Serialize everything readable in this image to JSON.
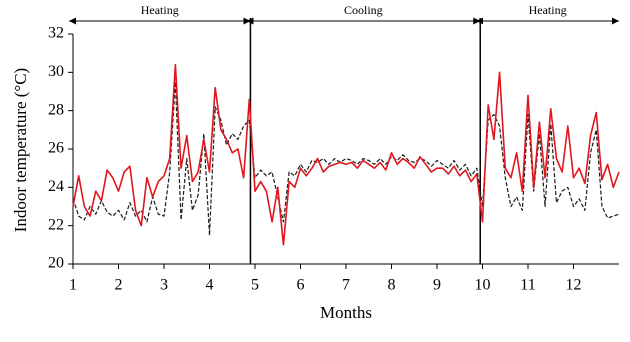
{
  "chart_data": {
    "type": "line",
    "xlabel": "Months",
    "ylabel": "Indoor temperature (°C)",
    "xlim": [
      1,
      13
    ],
    "ylim": [
      20,
      32
    ],
    "xticks": [
      1,
      2,
      3,
      4,
      5,
      6,
      7,
      8,
      9,
      10,
      11,
      12
    ],
    "yticks": [
      20,
      22,
      24,
      26,
      28,
      30,
      32
    ],
    "grid": false,
    "vlines": [
      4.9,
      9.95
    ],
    "annotations": [
      {
        "text": "Heating",
        "x": [
          1,
          4.9
        ]
      },
      {
        "text": "Cooling",
        "x": [
          4.9,
          9.95
        ]
      },
      {
        "text": "Heating",
        "x": [
          9.95,
          13
        ]
      }
    ],
    "x": [
      1,
      1.125,
      1.25,
      1.375,
      1.5,
      1.625,
      1.75,
      1.875,
      2,
      2.125,
      2.25,
      2.375,
      2.5,
      2.625,
      2.75,
      2.875,
      3,
      3.125,
      3.25,
      3.375,
      3.5,
      3.625,
      3.75,
      3.875,
      4,
      4.125,
      4.25,
      4.375,
      4.5,
      4.625,
      4.75,
      4.875,
      5,
      5.125,
      5.25,
      5.375,
      5.5,
      5.625,
      5.75,
      5.875,
      6,
      6.125,
      6.25,
      6.375,
      6.5,
      6.625,
      6.75,
      6.875,
      7,
      7.125,
      7.25,
      7.375,
      7.5,
      7.625,
      7.75,
      7.875,
      8,
      8.125,
      8.25,
      8.375,
      8.5,
      8.625,
      8.75,
      8.875,
      9,
      9.125,
      9.25,
      9.375,
      9.5,
      9.625,
      9.75,
      9.875,
      10,
      10.125,
      10.25,
      10.375,
      10.5,
      10.625,
      10.75,
      10.875,
      11,
      11.125,
      11.25,
      11.375,
      11.5,
      11.625,
      11.75,
      11.875,
      12,
      12.125,
      12.25,
      12.375,
      12.5,
      12.625,
      12.75,
      12.875,
      13
    ],
    "series": [
      {
        "color": "#e0161e",
        "dash": false,
        "values": [
          23.0,
          24.6,
          23.0,
          22.5,
          23.8,
          23.3,
          24.9,
          24.5,
          23.8,
          24.8,
          25.1,
          22.8,
          22.0,
          24.5,
          23.5,
          24.3,
          24.6,
          25.5,
          30.4,
          25.0,
          26.7,
          24.3,
          24.8,
          26.5,
          24.8,
          29.2,
          27.0,
          26.5,
          25.8,
          26.0,
          24.5,
          28.6,
          23.8,
          24.3,
          23.8,
          22.2,
          24.0,
          21.0,
          24.3,
          24.0,
          25.0,
          24.6,
          25.0,
          25.5,
          24.8,
          25.1,
          25.2,
          25.3,
          25.2,
          25.3,
          25.0,
          25.4,
          25.2,
          25.0,
          25.3,
          24.9,
          25.8,
          25.2,
          25.5,
          25.3,
          25.0,
          25.6,
          25.2,
          24.8,
          25.0,
          25.0,
          24.7,
          25.1,
          24.6,
          24.9,
          24.3,
          24.7,
          22.2,
          28.3,
          26.5,
          30.0,
          25.0,
          24.5,
          25.8,
          23.8,
          28.8,
          24.0,
          27.4,
          24.5,
          28.1,
          25.5,
          24.8,
          27.2,
          24.5,
          25.0,
          24.2,
          26.7,
          27.9,
          24.4,
          25.2,
          24.0,
          24.8
        ]
      },
      {
        "color": "#1a1a1a",
        "dash": true,
        "values": [
          23.4,
          22.5,
          22.3,
          23.0,
          22.6,
          23.3,
          22.7,
          22.5,
          22.8,
          22.3,
          23.2,
          22.5,
          22.8,
          22.2,
          23.5,
          22.6,
          22.5,
          24.8,
          29.5,
          22.3,
          25.5,
          22.8,
          23.6,
          26.8,
          21.5,
          28.2,
          27.5,
          26.2,
          26.8,
          26.5,
          27.2,
          27.5,
          24.5,
          24.9,
          24.6,
          24.8,
          23.5,
          22.2,
          24.8,
          24.6,
          25.2,
          24.8,
          25.4,
          25.3,
          25.5,
          25.2,
          25.5,
          25.3,
          25.5,
          25.4,
          25.2,
          25.5,
          25.4,
          25.2,
          25.5,
          25.2,
          25.6,
          25.4,
          25.7,
          25.4,
          25.3,
          25.5,
          25.4,
          25.1,
          25.4,
          25.2,
          25.0,
          25.4,
          24.9,
          25.2,
          24.6,
          25.0,
          23.0,
          27.5,
          27.8,
          27.2,
          24.5,
          23.0,
          23.5,
          22.8,
          27.8,
          23.8,
          26.8,
          23.0,
          27.3,
          23.2,
          23.8,
          24.0,
          23.0,
          23.4,
          22.8,
          25.8,
          27.0,
          23.0,
          22.4,
          22.5,
          22.6
        ]
      }
    ]
  }
}
